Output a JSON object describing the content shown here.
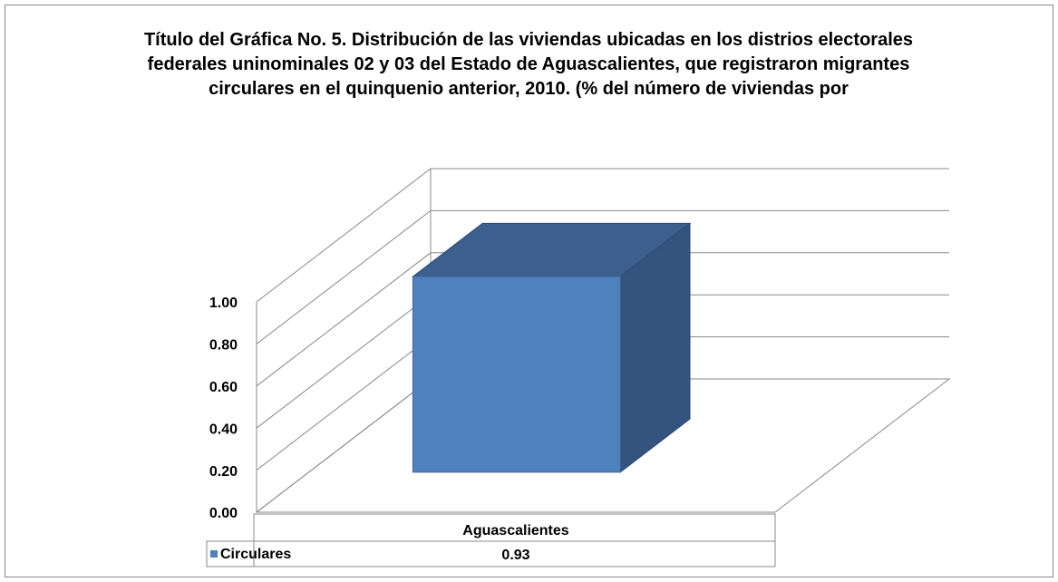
{
  "chart_data": {
    "type": "bar3d",
    "title": "Título del Gráfica No. 5. Distribución de las viviendas ubicadas en los distrios electorales federales uninominales 02 y 03 del Estado de Aguascalientes, que registraron migrantes circulares en el quinquenio anterior, 2010. (% del número de viviendas por",
    "categories": [
      "Aguascalientes"
    ],
    "series": [
      {
        "name": "Circulares",
        "color": "#4f81bd",
        "values": [
          0.93
        ]
      }
    ],
    "ylim": [
      0,
      1
    ],
    "yticks": [
      {
        "value": 0,
        "label": "0.00"
      },
      {
        "value": 0.2,
        "label": "0.20"
      },
      {
        "value": 0.4,
        "label": "0.40"
      },
      {
        "value": 0.6,
        "label": "0.60"
      },
      {
        "value": 0.8,
        "label": "0.80"
      },
      {
        "value": 1,
        "label": "1.00"
      }
    ],
    "grid": true,
    "data_table": true
  }
}
